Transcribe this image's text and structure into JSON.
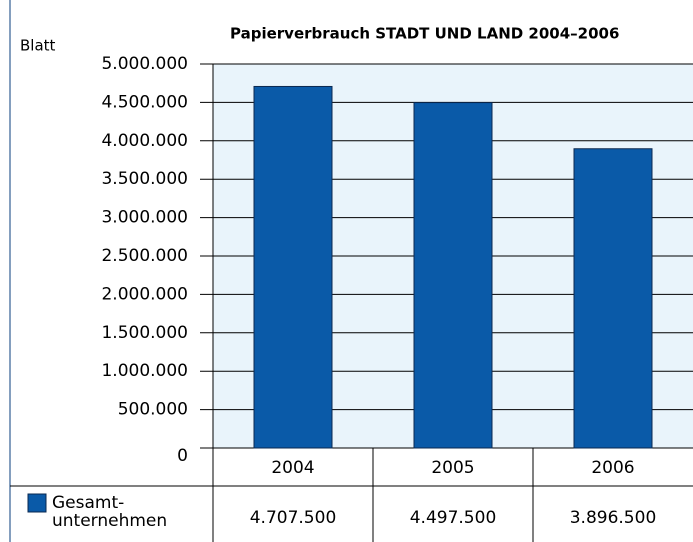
{
  "chart_data": {
    "type": "bar",
    "title": "Papierverbrauch STADT UND LAND 2004–2006",
    "y_label": "Blatt",
    "categories": [
      "2004",
      "2005",
      "2006"
    ],
    "series": [
      {
        "name": "Gesamt-unternehmen",
        "color": "#0a5aa8",
        "values": [
          4707500,
          4497500,
          3896500
        ],
        "value_labels": [
          "4.707.500",
          "4.497.500",
          "3.896.500"
        ]
      }
    ],
    "ylim": [
      0,
      5000000
    ],
    "yticks": [
      0,
      {
        "value": 500000,
        "label": "500.000"
      },
      {
        "value": 1000000,
        "label": "1.000.000"
      },
      {
        "value": 1500000,
        "label": "1.500.000"
      },
      {
        "value": 2000000,
        "label": "2.000.000"
      },
      {
        "value": 2500000,
        "label": "2.500.000"
      },
      {
        "value": 3000000,
        "label": "3.000.000"
      },
      {
        "value": 3500000,
        "label": "3.500.000"
      },
      {
        "value": 4000000,
        "label": "4.000.000"
      },
      {
        "value": 4500000,
        "label": "4.500.000"
      },
      {
        "value": 5000000,
        "label": "5.000.000"
      }
    ],
    "grid": true,
    "background": "#e9f4fb"
  }
}
